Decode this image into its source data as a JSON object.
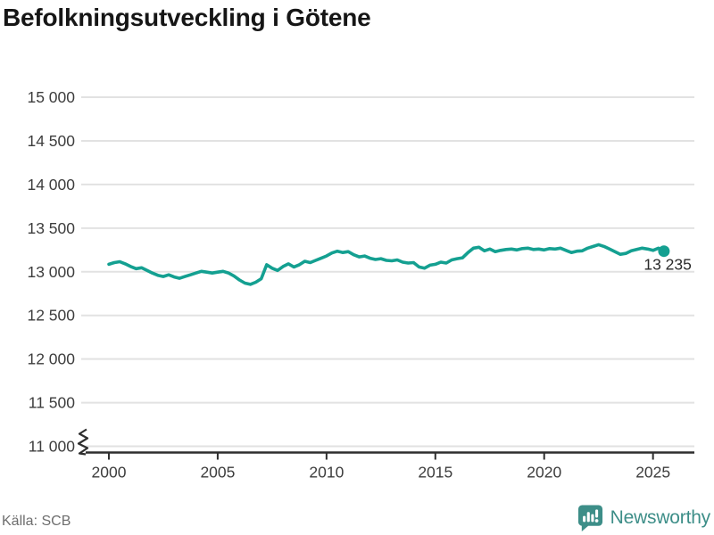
{
  "chart_data": {
    "type": "line",
    "title": "Befolkningsutveckling i Götene",
    "xlabel": "",
    "ylabel": "",
    "x_ticks": [
      2000,
      2005,
      2010,
      2015,
      2020,
      2025
    ],
    "y_ticks": [
      11000,
      11500,
      12000,
      12500,
      13000,
      13500,
      14000,
      14500,
      15000
    ],
    "xlim": [
      1998.73,
      2026.9
    ],
    "ylim": [
      11000,
      15000
    ],
    "grid": "horizontal",
    "axis_break": true,
    "legend": "none",
    "x_start": 2000,
    "x_step": 0.25,
    "series": [
      {
        "values": [
          13085,
          13105,
          13115,
          13090,
          13060,
          13035,
          13045,
          13015,
          12985,
          12960,
          12945,
          12965,
          12940,
          12925,
          12945,
          12965,
          12985,
          13005,
          12995,
          12985,
          12995,
          13005,
          12985,
          12950,
          12905,
          12870,
          12855,
          12880,
          12920,
          13080,
          13040,
          13015,
          13060,
          13090,
          13055,
          13080,
          13120,
          13105,
          13130,
          13155,
          13180,
          13215,
          13235,
          13220,
          13230,
          13195,
          13170,
          13180,
          13155,
          13140,
          13150,
          13130,
          13125,
          13135,
          13110,
          13100,
          13105,
          13055,
          13040,
          13075,
          13085,
          13110,
          13100,
          13135,
          13150,
          13160,
          13220,
          13270,
          13280,
          13240,
          13260,
          13230,
          13245,
          13255,
          13260,
          13250,
          13265,
          13270,
          13255,
          13260,
          13250,
          13265,
          13260,
          13270,
          13245,
          13220,
          13235,
          13240,
          13270,
          13290,
          13310,
          13290,
          13260,
          13230,
          13200,
          13210,
          13240,
          13255,
          13270,
          13260,
          13245,
          13270,
          13235
        ]
      }
    ],
    "end_label": "13 235"
  },
  "footer": {
    "source": "Källa: SCB",
    "brand": "Newsworthy"
  },
  "colors": {
    "line": "#14a091",
    "grid": "#e2e2e2",
    "axis": "#2e2e2e",
    "tick_label": "#3d3d3d",
    "annotation": "#2b2b2b",
    "brand": "#3d8e88",
    "title": "#161616",
    "source": "#6e6e6e"
  }
}
